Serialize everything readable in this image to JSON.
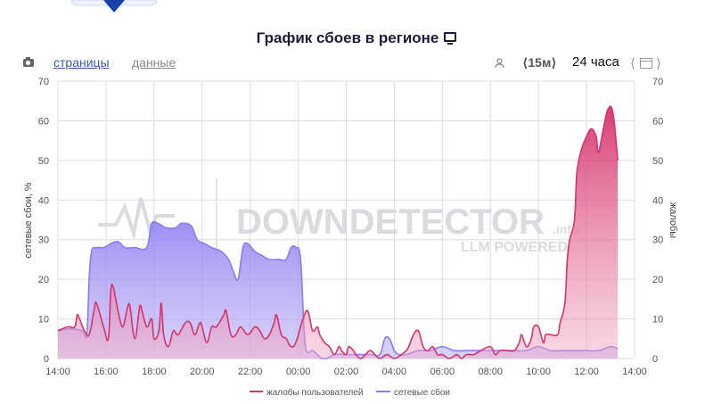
{
  "title": "График сбоев в регионе",
  "toolbar": {
    "tab_pages": "страницы",
    "tab_data": "данные",
    "interval": "⟨15м⟩",
    "range": "24 часа",
    "nav_left": "⟨",
    "nav_right": "⟩",
    "icons": [
      "camera-icon",
      "user-icon",
      "calendar-icon",
      "monitor-icon"
    ]
  },
  "watermark": {
    "line1": "DOWNDETECTOR",
    "suffix": ".info",
    "line2": "LLM POWERED"
  },
  "chart_data": {
    "type": "area",
    "title": "График сбоев в регионе",
    "ylabel_left": "сетевые сбои, %",
    "ylabel_right": "жалобы",
    "ylim": [
      0,
      70
    ],
    "yticks": [
      0,
      10,
      20,
      30,
      40,
      50,
      60,
      70
    ],
    "xlim": [
      0,
      24
    ],
    "xticks": [
      "14:00",
      "16:00",
      "18:00",
      "20:00",
      "22:00",
      "00:00",
      "02:00",
      "04:00",
      "06:00",
      "08:00",
      "10:00",
      "12:00",
      "14:00"
    ],
    "series": [
      {
        "name": "жалобы пользователей",
        "color": "#d6336c",
        "points": [
          [
            0,
            7
          ],
          [
            0.4,
            8
          ],
          [
            0.7,
            8
          ],
          [
            0.8,
            11
          ],
          [
            0.9,
            10
          ],
          [
            1.1,
            7
          ],
          [
            1.3,
            6
          ],
          [
            1.5,
            12
          ],
          [
            1.6,
            14
          ],
          [
            1.9,
            8
          ],
          [
            2.1,
            5
          ],
          [
            2.2,
            17
          ],
          [
            2.3,
            18
          ],
          [
            2.5,
            12
          ],
          [
            2.7,
            8
          ],
          [
            2.9,
            13
          ],
          [
            3.0,
            13
          ],
          [
            3.2,
            5
          ],
          [
            3.4,
            13
          ],
          [
            3.5,
            12
          ],
          [
            3.7,
            8
          ],
          [
            3.9,
            10
          ],
          [
            4.0,
            5
          ],
          [
            4.2,
            7
          ],
          [
            4.3,
            14
          ],
          [
            4.4,
            6
          ],
          [
            4.6,
            3
          ],
          [
            4.8,
            7
          ],
          [
            5.0,
            6
          ],
          [
            5.3,
            9
          ],
          [
            5.5,
            9
          ],
          [
            5.7,
            6
          ],
          [
            5.9,
            9
          ],
          [
            6.0,
            8
          ],
          [
            6.2,
            4
          ],
          [
            6.4,
            8
          ],
          [
            6.6,
            8
          ],
          [
            6.9,
            11
          ],
          [
            7.0,
            12
          ],
          [
            7.2,
            6
          ],
          [
            7.4,
            6
          ],
          [
            7.6,
            8
          ],
          [
            7.9,
            6
          ],
          [
            8.2,
            8
          ],
          [
            8.4,
            7
          ],
          [
            8.6,
            5
          ],
          [
            8.8,
            6
          ],
          [
            9.0,
            9
          ],
          [
            9.1,
            11
          ],
          [
            9.3,
            6
          ],
          [
            9.5,
            5
          ],
          [
            9.7,
            3
          ],
          [
            9.9,
            4
          ],
          [
            10.2,
            10
          ],
          [
            10.4,
            12
          ],
          [
            10.6,
            7
          ],
          [
            10.8,
            8
          ],
          [
            10.9,
            6
          ],
          [
            11.1,
            4
          ],
          [
            11.3,
            3
          ],
          [
            11.5,
            1
          ],
          [
            11.7,
            3
          ],
          [
            11.8,
            2
          ],
          [
            12.0,
            1
          ],
          [
            12.1,
            3
          ],
          [
            12.3,
            2
          ],
          [
            12.4,
            1
          ],
          [
            12.6,
            0
          ],
          [
            12.8,
            1
          ],
          [
            13.0,
            2
          ],
          [
            13.2,
            1
          ],
          [
            13.4,
            0
          ],
          [
            13.7,
            1
          ],
          [
            14.0,
            0
          ],
          [
            14.3,
            1
          ],
          [
            14.5,
            2
          ],
          [
            14.6,
            3
          ],
          [
            14.8,
            6
          ],
          [
            15.0,
            7
          ],
          [
            15.2,
            3
          ],
          [
            15.4,
            2
          ],
          [
            15.6,
            3
          ],
          [
            15.8,
            1
          ],
          [
            16.0,
            1
          ],
          [
            16.3,
            0
          ],
          [
            16.6,
            1
          ],
          [
            16.8,
            0
          ],
          [
            17.0,
            1
          ],
          [
            17.3,
            1
          ],
          [
            17.6,
            2
          ],
          [
            18.0,
            3
          ],
          [
            18.2,
            1
          ],
          [
            18.4,
            2
          ],
          [
            18.7,
            2
          ],
          [
            19.0,
            2
          ],
          [
            19.2,
            4
          ],
          [
            19.3,
            6
          ],
          [
            19.5,
            3
          ],
          [
            19.7,
            5
          ],
          [
            19.8,
            8
          ],
          [
            20.0,
            8
          ],
          [
            20.2,
            4
          ],
          [
            20.3,
            6
          ],
          [
            20.5,
            6
          ],
          [
            20.8,
            6
          ],
          [
            20.9,
            9
          ],
          [
            21.1,
            14
          ],
          [
            21.2,
            25
          ],
          [
            21.3,
            30
          ],
          [
            21.5,
            35
          ],
          [
            21.6,
            47
          ],
          [
            21.8,
            53
          ],
          [
            22.0,
            56
          ],
          [
            22.2,
            58
          ],
          [
            22.4,
            56
          ],
          [
            22.5,
            52
          ],
          [
            22.7,
            58
          ],
          [
            22.9,
            63
          ],
          [
            23.1,
            62
          ],
          [
            23.3,
            50
          ]
        ]
      },
      {
        "name": "сетевые сбои",
        "color": "#8c7cf0",
        "points": [
          [
            0,
            7
          ],
          [
            0.5,
            7.5
          ],
          [
            1.0,
            7
          ],
          [
            1.2,
            6
          ],
          [
            1.3,
            20
          ],
          [
            1.4,
            27
          ],
          [
            1.6,
            28
          ],
          [
            1.9,
            28
          ],
          [
            2.2,
            29
          ],
          [
            2.5,
            29.5
          ],
          [
            2.8,
            28
          ],
          [
            3.2,
            28
          ],
          [
            3.7,
            28
          ],
          [
            3.9,
            34
          ],
          [
            4.2,
            34
          ],
          [
            4.5,
            33
          ],
          [
            4.9,
            33
          ],
          [
            5.1,
            34
          ],
          [
            5.4,
            34
          ],
          [
            5.6,
            33
          ],
          [
            5.8,
            30
          ],
          [
            6.1,
            29
          ],
          [
            6.4,
            28
          ],
          [
            6.8,
            27
          ],
          [
            7.1,
            25
          ],
          [
            7.3,
            22
          ],
          [
            7.5,
            20
          ],
          [
            7.7,
            28
          ],
          [
            7.9,
            29
          ],
          [
            8.2,
            27
          ],
          [
            8.5,
            26
          ],
          [
            8.8,
            25
          ],
          [
            9.2,
            25
          ],
          [
            9.5,
            25
          ],
          [
            9.7,
            28
          ],
          [
            9.9,
            28
          ],
          [
            10.1,
            25
          ],
          [
            10.3,
            3
          ],
          [
            10.6,
            2
          ],
          [
            10.8,
            1
          ],
          [
            11.0,
            0
          ],
          [
            11.2,
            0
          ],
          [
            11.5,
            1
          ],
          [
            12.0,
            1
          ],
          [
            12.5,
            1
          ],
          [
            13.0,
            1
          ],
          [
            13.4,
            1
          ],
          [
            13.6,
            5
          ],
          [
            13.8,
            5
          ],
          [
            14.0,
            2
          ],
          [
            14.2,
            1
          ],
          [
            14.5,
            1
          ],
          [
            15.0,
            2
          ],
          [
            15.5,
            2
          ],
          [
            16.0,
            3
          ],
          [
            16.5,
            2
          ],
          [
            17.0,
            2
          ],
          [
            17.5,
            2
          ],
          [
            18.0,
            2
          ],
          [
            18.5,
            2
          ],
          [
            19.0,
            2
          ],
          [
            19.5,
            2
          ],
          [
            20.0,
            3
          ],
          [
            20.5,
            2
          ],
          [
            21.0,
            2
          ],
          [
            21.5,
            2
          ],
          [
            22.0,
            2
          ],
          [
            22.5,
            2
          ],
          [
            23.0,
            3
          ],
          [
            23.3,
            2.5
          ]
        ]
      }
    ],
    "grid": true,
    "legend": "bottom"
  }
}
